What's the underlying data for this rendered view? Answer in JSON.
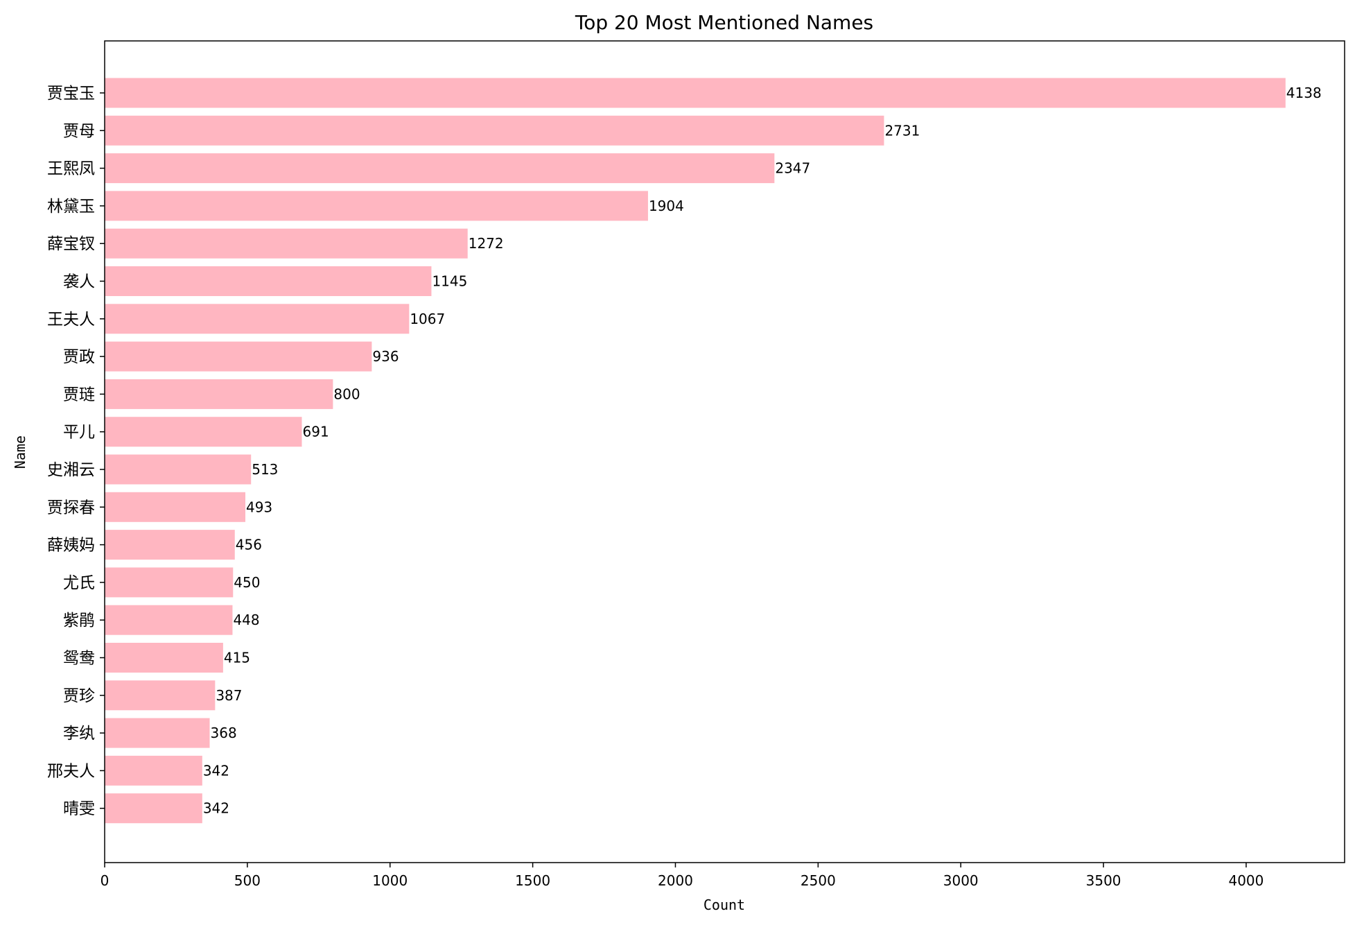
{
  "chart_data": {
    "type": "bar",
    "orientation": "horizontal",
    "title": "Top 20 Most Mentioned Names",
    "xlabel": "Count",
    "ylabel": "Name",
    "xlim": [
      0,
      4345
    ],
    "xticks": [
      0,
      500,
      1000,
      1500,
      2000,
      2500,
      3000,
      3500,
      4000
    ],
    "categories": [
      "贾宝玉",
      "贾母",
      "王熙凤",
      "林黛玉",
      "薛宝钗",
      "袭人",
      "王夫人",
      "贾政",
      "贾琏",
      "平儿",
      "史湘云",
      "贾探春",
      "薛姨妈",
      "尤氏",
      "紫鹃",
      "鸳鸯",
      "贾珍",
      "李纨",
      "邢夫人",
      "晴雯"
    ],
    "values": [
      4138,
      2731,
      2347,
      1904,
      1272,
      1145,
      1067,
      936,
      800,
      691,
      513,
      493,
      456,
      450,
      448,
      415,
      387,
      368,
      342,
      342
    ],
    "bar_color": "#ffb6c1",
    "grid": false,
    "legend": "none"
  }
}
